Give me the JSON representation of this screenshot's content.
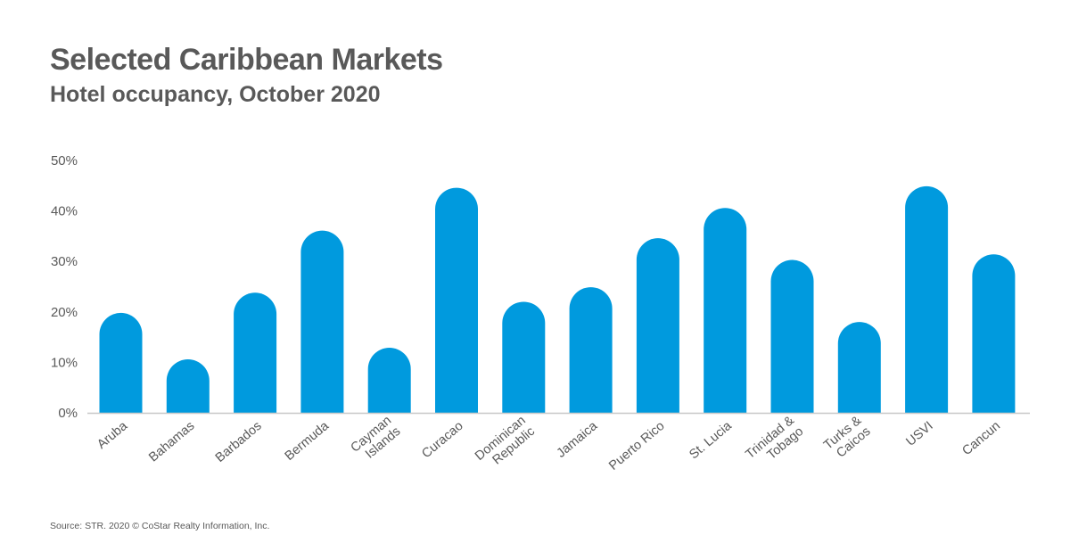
{
  "header": {
    "title": "Selected Caribbean Markets",
    "subtitle": "Hotel occupancy, October 2020"
  },
  "footer": {
    "source": "Source: STR. 2020 © CoStar Realty Information, Inc."
  },
  "colors": {
    "bar": "#009ADE",
    "axis": "#C8C8C8",
    "text": "#595959"
  },
  "chart_data": {
    "type": "bar",
    "title": "Selected Caribbean Markets",
    "subtitle": "Hotel occupancy, October 2020",
    "xlabel": "",
    "ylabel": "",
    "categories": [
      [
        "Aruba"
      ],
      [
        "Bahamas"
      ],
      [
        "Barbados"
      ],
      [
        "Bermuda"
      ],
      [
        "Cayman",
        "Islands"
      ],
      [
        "Curacao"
      ],
      [
        "Dominican",
        "Republic"
      ],
      [
        "Jamaica"
      ],
      [
        "Puerto Rico"
      ],
      [
        "St. Lucia"
      ],
      [
        "Trinidad &",
        "Tobago"
      ],
      [
        "Turks &",
        "Caicos"
      ],
      [
        "USVI"
      ],
      [
        "Cancun"
      ]
    ],
    "values": [
      19.8,
      10.6,
      23.8,
      36.1,
      12.9,
      44.6,
      22.0,
      24.9,
      34.6,
      40.6,
      30.3,
      18.0,
      44.9,
      31.4
    ],
    "ylim": [
      0,
      50
    ],
    "yticks": [
      "0%",
      "10%",
      "20%",
      "30%",
      "40%",
      "50%"
    ],
    "grid": false,
    "legend": "none"
  }
}
